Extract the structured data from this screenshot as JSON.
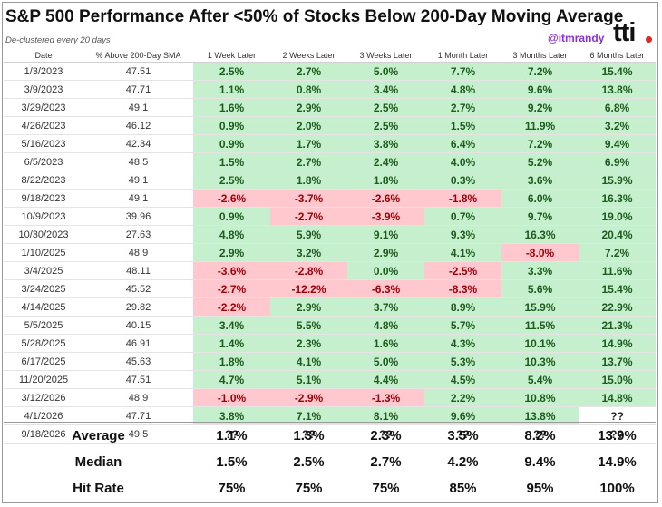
{
  "header": {
    "title": "S&P 500 Performance After <50% of Stocks Below 200-Day Moving Average",
    "subtitle": "De-clustered every 20 days",
    "handle": "@itmrandy",
    "logo": "tti"
  },
  "colors": {
    "positive_bg": "#c6efce",
    "negative_bg": "#ffc7ce"
  },
  "columns": [
    "Date",
    "% Above 200-Day SMA",
    "1 Week Later",
    "2 Weeks Later",
    "3 Weeks Later",
    "1 Month Later",
    "3 Months Later",
    "6 Months Later"
  ],
  "rows": [
    {
      "date": "1/3/2023",
      "sma": "47.51",
      "values": [
        "2.5%",
        "2.7%",
        "5.0%",
        "7.7%",
        "7.2%",
        "15.4%"
      ]
    },
    {
      "date": "3/9/2023",
      "sma": "47.71",
      "values": [
        "1.1%",
        "0.8%",
        "3.4%",
        "4.8%",
        "9.6%",
        "13.8%"
      ]
    },
    {
      "date": "3/29/2023",
      "sma": "49.1",
      "values": [
        "1.6%",
        "2.9%",
        "2.5%",
        "2.7%",
        "9.2%",
        "6.8%"
      ]
    },
    {
      "date": "4/26/2023",
      "sma": "46.12",
      "values": [
        "0.9%",
        "2.0%",
        "2.5%",
        "1.5%",
        "11.9%",
        "3.2%"
      ]
    },
    {
      "date": "5/16/2023",
      "sma": "42.34",
      "values": [
        "0.9%",
        "1.7%",
        "3.8%",
        "6.4%",
        "7.2%",
        "9.4%"
      ]
    },
    {
      "date": "6/5/2023",
      "sma": "48.5",
      "values": [
        "1.5%",
        "2.7%",
        "2.4%",
        "4.0%",
        "5.2%",
        "6.9%"
      ]
    },
    {
      "date": "8/22/2023",
      "sma": "49.1",
      "values": [
        "2.5%",
        "1.8%",
        "1.8%",
        "0.3%",
        "3.6%",
        "15.9%"
      ]
    },
    {
      "date": "9/18/2023",
      "sma": "49.1",
      "values": [
        "-2.6%",
        "-3.7%",
        "-2.6%",
        "-1.8%",
        "6.0%",
        "16.3%"
      ]
    },
    {
      "date": "10/9/2023",
      "sma": "39.96",
      "values": [
        "0.9%",
        "-2.7%",
        "-3.9%",
        "0.7%",
        "9.7%",
        "19.0%"
      ]
    },
    {
      "date": "10/30/2023",
      "sma": "27.63",
      "values": [
        "4.8%",
        "5.9%",
        "9.1%",
        "9.3%",
        "16.3%",
        "20.4%"
      ]
    },
    {
      "date": "1/10/2025",
      "sma": "48.9",
      "values": [
        "2.9%",
        "3.2%",
        "2.9%",
        "4.1%",
        "-8.0%",
        "7.2%"
      ]
    },
    {
      "date": "3/4/2025",
      "sma": "48.11",
      "values": [
        "-3.6%",
        "-2.8%",
        "0.0%",
        "-2.5%",
        "3.3%",
        "11.6%"
      ]
    },
    {
      "date": "3/24/2025",
      "sma": "45.52",
      "values": [
        "-2.7%",
        "-12.2%",
        "-6.3%",
        "-8.3%",
        "5.6%",
        "15.4%"
      ]
    },
    {
      "date": "4/14/2025",
      "sma": "29.82",
      "values": [
        "-2.2%",
        "2.9%",
        "3.7%",
        "8.9%",
        "15.9%",
        "22.9%"
      ]
    },
    {
      "date": "5/5/2025",
      "sma": "40.15",
      "values": [
        "3.4%",
        "5.5%",
        "4.8%",
        "5.7%",
        "11.5%",
        "21.3%"
      ]
    },
    {
      "date": "5/28/2025",
      "sma": "46.91",
      "values": [
        "1.4%",
        "2.3%",
        "1.6%",
        "4.3%",
        "10.1%",
        "14.9%"
      ]
    },
    {
      "date": "6/17/2025",
      "sma": "45.63",
      "values": [
        "1.8%",
        "4.1%",
        "5.0%",
        "5.3%",
        "10.3%",
        "13.7%"
      ]
    },
    {
      "date": "11/20/2025",
      "sma": "47.51",
      "values": [
        "4.7%",
        "5.1%",
        "4.4%",
        "4.5%",
        "5.4%",
        "15.0%"
      ]
    },
    {
      "date": "3/12/2026",
      "sma": "48.9",
      "values": [
        "-1.0%",
        "-2.9%",
        "-1.3%",
        "2.2%",
        "10.8%",
        "14.8%"
      ]
    },
    {
      "date": "4/1/2026",
      "sma": "47.71",
      "values": [
        "3.8%",
        "7.1%",
        "8.1%",
        "9.6%",
        "13.8%",
        "??"
      ]
    },
    {
      "date": "9/18/2026",
      "sma": "49.5",
      "values": [
        "??",
        "??",
        "??",
        "??",
        "??",
        "??"
      ]
    }
  ],
  "summary": [
    {
      "label": "Average",
      "values": [
        "1.1%",
        "1.3%",
        "2.3%",
        "3.5%",
        "8.2%",
        "13.9%"
      ]
    },
    {
      "label": "Median",
      "values": [
        "1.5%",
        "2.5%",
        "2.7%",
        "4.2%",
        "9.4%",
        "14.9%"
      ]
    },
    {
      "label": "Hit Rate",
      "values": [
        "75%",
        "75%",
        "75%",
        "85%",
        "95%",
        "100%"
      ]
    }
  ]
}
